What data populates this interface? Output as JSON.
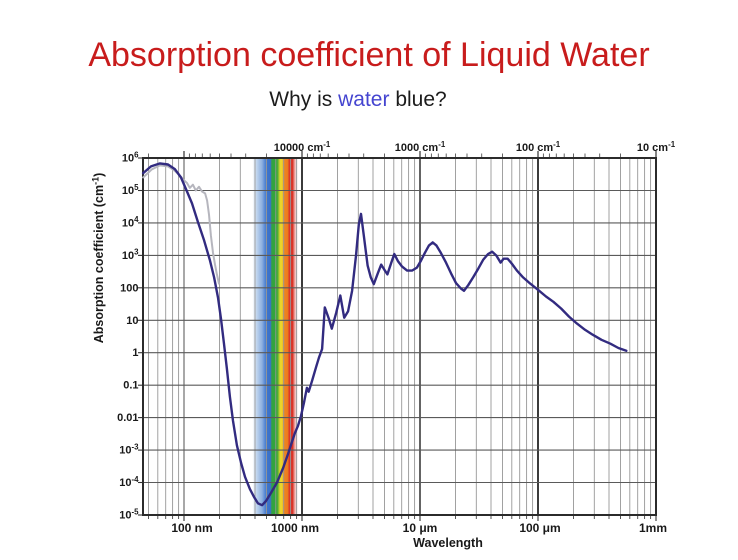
{
  "slide": {
    "title": "Absorption coefficient of Liquid Water",
    "title_color": "#c81c1c",
    "subtitle": {
      "pre": "Why is ",
      "highlight": "water",
      "post": " blue?"
    },
    "subtitle_color": "#1c1c1c",
    "highlight_color": "#4545d0",
    "background": "#ffffff"
  },
  "chart_data": {
    "type": "line",
    "title": "",
    "xlabel": "Wavelength",
    "ylabel": {
      "pre": "Absorption coefficient (cm",
      "sup": "-1",
      "post": ")"
    },
    "x_scale": "log",
    "y_scale": "log",
    "grid": true,
    "x_range_nm": [
      44.9,
      1000000
    ],
    "y_range": [
      1e-05,
      1000000.0
    ],
    "y_ticks": [
      {
        "m": "10",
        "e": "6",
        "value": 1000000.0
      },
      {
        "m": "10",
        "e": "5",
        "value": 100000.0
      },
      {
        "m": "10",
        "e": "4",
        "value": 10000.0
      },
      {
        "m": "10",
        "e": "3",
        "value": 1000.0
      },
      {
        "m": "100",
        "value": 100
      },
      {
        "m": "10",
        "value": 10
      },
      {
        "m": "1",
        "value": 1
      },
      {
        "m": "0.1",
        "value": 0.1
      },
      {
        "m": "0.01",
        "value": 0.01
      },
      {
        "m": "10",
        "e": "-3",
        "value": 0.001
      },
      {
        "m": "10",
        "e": "-4",
        "value": 0.0001
      },
      {
        "m": "10",
        "e": "-5",
        "value": 1e-05
      }
    ],
    "x_ticks_bottom": [
      {
        "text": "100 nm",
        "nm": 100,
        "dx": 8
      },
      {
        "text": "1000 nm",
        "nm": 1000,
        "dx": -7
      },
      {
        "text": "10 μm",
        "nm": 10000,
        "dx": 0
      },
      {
        "text": "100 μm",
        "nm": 100000,
        "dx": 2
      },
      {
        "text": "1mm",
        "nm": 1000000,
        "dx": -3
      }
    ],
    "x_ticks_top": [
      {
        "text": "10000 cm",
        "sup": "-1",
        "nm": 1000
      },
      {
        "text": "1000 cm",
        "sup": "-1",
        "nm": 10000
      },
      {
        "text": "100 cm",
        "sup": "-1",
        "nm": 100000
      },
      {
        "text": "10 cm",
        "sup": "-1",
        "nm": 1000000
      }
    ],
    "visible_band": {
      "range_nm": [
        420,
        780
      ],
      "colors": [
        "#a9c4e8",
        "#3e76cc",
        "#31a636",
        "#e5d72c",
        "#ee8523",
        "#d92e22"
      ]
    },
    "series": [
      {
        "name": "uv-secondary-gray",
        "color": "#b6b6be",
        "points": [
          [
            45,
            250000.0
          ],
          [
            53.5,
            450000.0
          ],
          [
            62.6,
            590000.0
          ],
          [
            73.2,
            550000.0
          ],
          [
            82.3,
            420000.0
          ],
          [
            90.7,
            310000.0
          ],
          [
            98.1,
            220000.0
          ],
          [
            106,
            170000.0
          ],
          [
            112,
            120000.0
          ],
          [
            119,
            150000.0
          ],
          [
            126,
            100000.0
          ],
          [
            134,
            130000.0
          ],
          [
            142,
            93000.0
          ],
          [
            151,
            81000.0
          ],
          [
            157,
            49000.0
          ],
          [
            163,
            18000.0
          ],
          [
            169,
            4100
          ],
          [
            176,
            1200
          ],
          [
            183,
            520
          ],
          [
            190,
            260
          ],
          [
            198,
            135
          ]
        ]
      },
      {
        "name": "liquid-water-absorption",
        "color": "#322b80",
        "points": [
          [
            45,
            340000.0
          ],
          [
            52.5,
            550000.0
          ],
          [
            62.6,
            680000.0
          ],
          [
            73.2,
            630000.0
          ],
          [
            83.9,
            450000.0
          ],
          [
            94.3,
            250000.0
          ],
          [
            104,
            110000.0
          ],
          [
            117,
            40000.0
          ],
          [
            131,
            11000.0
          ],
          [
            148,
            2900
          ],
          [
            166,
            690
          ],
          [
            180,
            210
          ],
          [
            194,
            50
          ],
          [
            206,
            11
          ],
          [
            218,
            2.0
          ],
          [
            231,
            0.32
          ],
          [
            245,
            0.044
          ],
          [
            260,
            0.008
          ],
          [
            281,
            0.0014
          ],
          [
            305,
            0.0004
          ],
          [
            329,
            0.00015
          ],
          [
            362,
            6.3e-05
          ],
          [
            392,
            3.6e-05
          ],
          [
            423,
            2.3e-05
          ],
          [
            459,
            2e-05
          ],
          [
            495,
            2.7e-05
          ],
          [
            546,
            4.8e-05
          ],
          [
            614,
            0.0001
          ],
          [
            691,
            0.00028
          ],
          [
            761,
            0.00076
          ],
          [
            823,
            0.0018
          ],
          [
            872,
            0.0034
          ],
          [
            925,
            0.0056
          ],
          [
            978,
            0.011
          ],
          [
            1040,
            0.029
          ],
          [
            1100,
            0.083
          ],
          [
            1140,
            0.063
          ],
          [
            1220,
            0.14
          ],
          [
            1320,
            0.37
          ],
          [
            1390,
            0.7
          ],
          [
            1480,
            1.3
          ],
          [
            1560,
            25
          ],
          [
            1690,
            11
          ],
          [
            1790,
            5.5
          ],
          [
            1950,
            17
          ],
          [
            2110,
            58
          ],
          [
            2280,
            12
          ],
          [
            2460,
            19
          ],
          [
            2660,
            81
          ],
          [
            2870,
            980
          ],
          [
            3030,
            8900
          ],
          [
            3160,
            19000.0
          ],
          [
            3340,
            4100
          ],
          [
            3600,
            490
          ],
          [
            3830,
            210
          ],
          [
            4060,
            130
          ],
          [
            4410,
            290
          ],
          [
            4690,
            520
          ],
          [
            4990,
            360
          ],
          [
            5290,
            260
          ],
          [
            5710,
            600
          ],
          [
            6060,
            1100
          ],
          [
            6520,
            650
          ],
          [
            7050,
            450
          ],
          [
            7770,
            340
          ],
          [
            8560,
            340
          ],
          [
            9420,
            420
          ],
          [
            10200,
            690
          ],
          [
            11000,
            1200
          ],
          [
            11900,
            2000
          ],
          [
            12800,
            2500
          ],
          [
            13800,
            2000
          ],
          [
            15000,
            1200
          ],
          [
            16600,
            600
          ],
          [
            18300,
            280
          ],
          [
            20200,
            140
          ],
          [
            22200,
            95
          ],
          [
            23600,
            81
          ],
          [
            25600,
            120
          ],
          [
            28200,
            210
          ],
          [
            31200,
            390
          ],
          [
            34400,
            740
          ],
          [
            37800,
            1100
          ],
          [
            40900,
            1300
          ],
          [
            44400,
            980
          ],
          [
            48200,
            600
          ],
          [
            51100,
            790
          ],
          [
            55300,
            790
          ],
          [
            59800,
            560
          ],
          [
            66200,
            340
          ],
          [
            74800,
            210
          ],
          [
            85900,
            135
          ],
          [
            100000,
            87
          ],
          [
            117000,
            54
          ],
          [
            135000,
            37
          ],
          [
            157000,
            23
          ],
          [
            183000,
            13
          ],
          [
            214000,
            7.9
          ],
          [
            250000,
            5.1
          ],
          [
            291000,
            3.6
          ],
          [
            345000,
            2.5
          ],
          [
            411000,
            1.9
          ],
          [
            480000,
            1.4
          ],
          [
            560000,
            1.15
          ]
        ]
      }
    ]
  }
}
